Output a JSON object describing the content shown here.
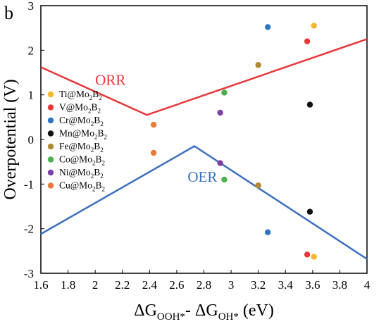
{
  "panel_label": "b",
  "chart_data": {
    "type": "scatter",
    "title": "",
    "xlabel_main": "ΔG",
    "xlabel_sub1": "OOH*",
    "xlabel_mid": "- ΔG",
    "xlabel_sub2": "OH*",
    "xlabel_end": " (eV)",
    "ylabel": "Overpotential (V)",
    "xlim": [
      1.6,
      4.0
    ],
    "ylim": [
      -3,
      3
    ],
    "xticks": [
      "1.6",
      "1.8",
      "2",
      "2.2",
      "2.4",
      "2.6",
      "2.8",
      "3",
      "3.2",
      "3.4",
      "3.6",
      "3.8",
      "4"
    ],
    "yticks": [
      "-3",
      "-2",
      "-1",
      "0",
      "1",
      "2",
      "3"
    ],
    "grid": false,
    "legend_position": "left",
    "volcano_lines": [
      {
        "name": "ORR",
        "color": "#e8383b",
        "points": [
          [
            1.6,
            1.62
          ],
          [
            2.38,
            0.55
          ],
          [
            4.0,
            2.25
          ]
        ]
      },
      {
        "name": "OER",
        "color": "#3d6fc0",
        "points": [
          [
            1.6,
            -2.12
          ],
          [
            2.73,
            -0.15
          ],
          [
            4.0,
            -2.68
          ]
        ]
      }
    ],
    "line_labels": [
      {
        "text": "ORR",
        "color": "#e8383b",
        "x": 2.0,
        "y": 1.22
      },
      {
        "text": "OER",
        "color": "#3d6fc0",
        "x": 2.68,
        "y": -0.95
      }
    ],
    "series": [
      {
        "name": "Ti@Mo",
        "sub": "2",
        "tail": "B",
        "sub2": "2",
        "color": "#f5b731",
        "points": [
          [
            3.61,
            2.55
          ],
          [
            3.61,
            -2.63
          ]
        ]
      },
      {
        "name": "V@Mo",
        "sub": "2",
        "tail": "B",
        "sub2": "2",
        "color": "#e8383b",
        "points": [
          [
            3.56,
            2.2
          ],
          [
            3.56,
            -2.58
          ]
        ]
      },
      {
        "name": "Cr@Mo",
        "sub": "2",
        "tail": "B",
        "sub2": "2",
        "color": "#2f75c0",
        "points": [
          [
            3.27,
            2.52
          ],
          [
            3.27,
            -2.08
          ]
        ]
      },
      {
        "name": "Mn@Mo",
        "sub": "2",
        "tail": "B",
        "sub2": "2",
        "color": "#111111",
        "points": [
          [
            3.58,
            0.78
          ],
          [
            3.58,
            -1.62
          ]
        ]
      },
      {
        "name": "Fe@Mo",
        "sub": "2",
        "tail": "B",
        "sub2": "2",
        "color": "#b08a33",
        "points": [
          [
            3.2,
            1.67
          ],
          [
            3.2,
            -1.03
          ]
        ]
      },
      {
        "name": " Co@Mo",
        "sub": "2",
        "tail": "B",
        "sub2": "2",
        "color": "#4caf50",
        "points": [
          [
            2.95,
            1.05
          ],
          [
            2.95,
            -0.9
          ]
        ]
      },
      {
        "name": "Ni@Mo",
        "sub": "2",
        "tail": "B",
        "sub2": "2",
        "color": "#7b3fa6",
        "points": [
          [
            2.92,
            0.6
          ],
          [
            2.92,
            -0.53
          ]
        ]
      },
      {
        "name": "Cu@Mo",
        "sub": "2",
        "tail": "B",
        "sub2": "2",
        "color": "#e87a3b",
        "points": [
          [
            2.43,
            0.33
          ],
          [
            2.43,
            -0.3
          ]
        ]
      }
    ]
  }
}
